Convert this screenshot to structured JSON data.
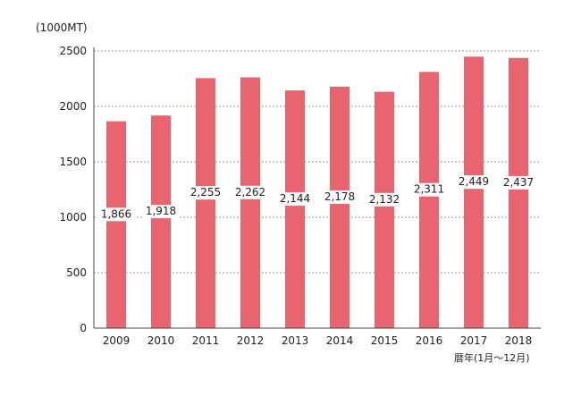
{
  "chart_data": {
    "type": "bar",
    "categories": [
      "2009",
      "2010",
      "2011",
      "2012",
      "2013",
      "2014",
      "2015",
      "2016",
      "2017",
      "2018"
    ],
    "values": [
      1866,
      1918,
      2255,
      2262,
      2144,
      2178,
      2132,
      2311,
      2449,
      2437
    ],
    "value_labels": [
      "1,866",
      "1,918",
      "2,255",
      "2,262",
      "2,144",
      "2,178",
      "2,132",
      "2,311",
      "2,449",
      "2,437"
    ],
    "y_unit_label": "(1000MT)",
    "x_unit_label": "暦年(1月〜12月)",
    "ylim": [
      0,
      2500
    ],
    "yticks": [
      0,
      500,
      1000,
      1500,
      2000,
      2500
    ],
    "grid": true,
    "colors": {
      "bar": "#e8646e",
      "grid": "#777777",
      "axis": "#444444",
      "label_bg": "#ffffff"
    }
  }
}
